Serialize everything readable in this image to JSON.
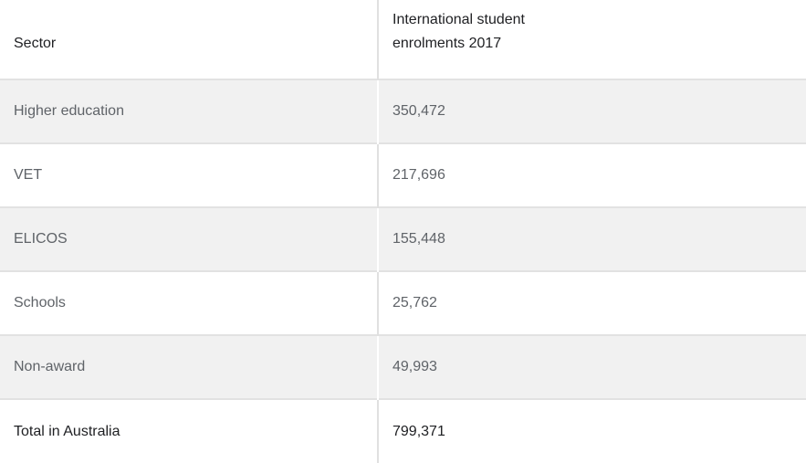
{
  "colors": {
    "background": "#ffffff",
    "row_stripe": "#f1f1f1",
    "row_border": "#e2e2e2",
    "column_divider": "#e0e0e0",
    "header_text": "#202124",
    "body_text": "#5f6368"
  },
  "table": {
    "columns": [
      {
        "label": "Sector"
      },
      {
        "label": "International student enrolments 2017"
      }
    ],
    "rows": [
      {
        "sector": "Higher education",
        "value": "350,472"
      },
      {
        "sector": "VET",
        "value": "217,696"
      },
      {
        "sector": "ELICOS",
        "value": "155,448"
      },
      {
        "sector": "Schools",
        "value": "25,762"
      },
      {
        "sector": "Non-award",
        "value": "49,993"
      },
      {
        "sector": "Total in Australia",
        "value": "799,371"
      }
    ]
  },
  "chart_data": {
    "type": "table",
    "title": "International student enrolments 2017",
    "columns": [
      "Sector",
      "International student enrolments 2017"
    ],
    "categories": [
      "Higher education",
      "VET",
      "ELICOS",
      "Schools",
      "Non-award",
      "Total in Australia"
    ],
    "values": [
      350472,
      217696,
      155448,
      25762,
      49993,
      799371
    ]
  }
}
